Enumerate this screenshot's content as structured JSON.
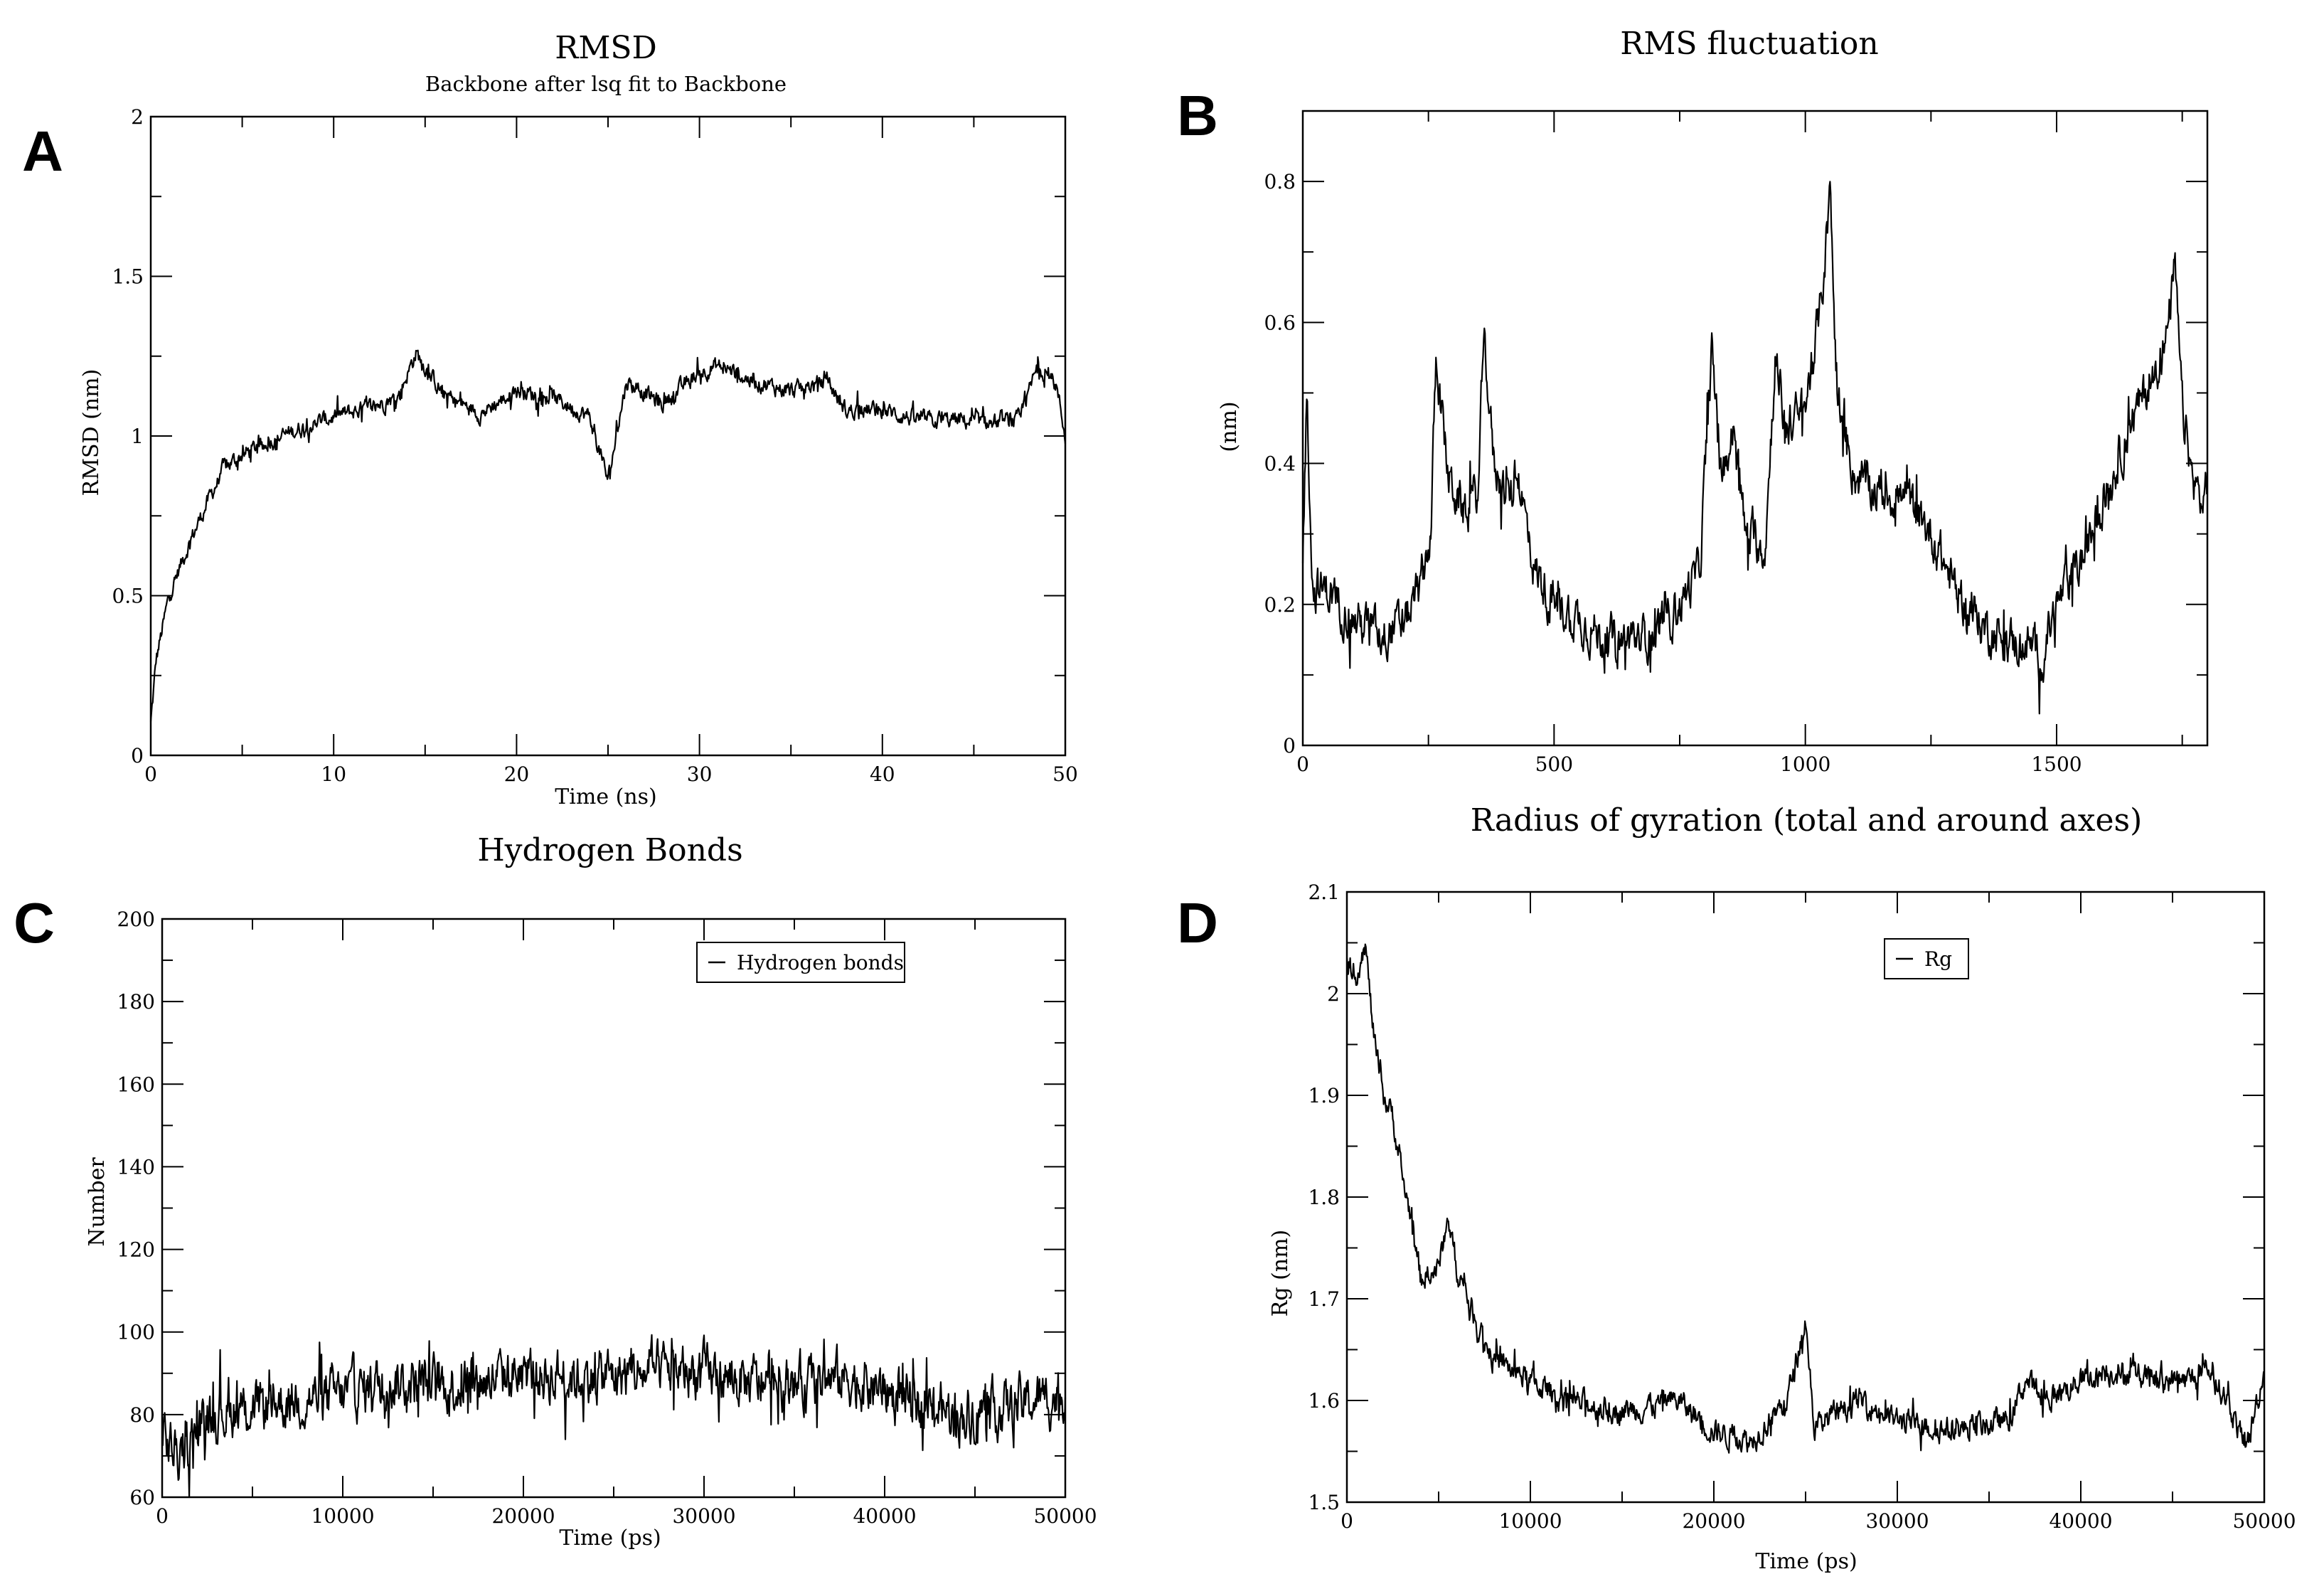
{
  "figure": {
    "background": "#ffffff",
    "line_color": "#000000",
    "panels": [
      "A",
      "B",
      "C",
      "D"
    ]
  },
  "chart_data": [
    {
      "panel_label": "A",
      "type": "line",
      "title": "RMSD",
      "subtitle": "Backbone after lsq fit to Backbone",
      "xlabel": "Time (ns)",
      "ylabel": "RMSD (nm)",
      "xlim": [
        0,
        50
      ],
      "ylim": [
        0,
        2
      ],
      "xticks": [
        0,
        10,
        20,
        30,
        40,
        50
      ],
      "yticks": [
        0,
        0.5,
        1,
        1.5,
        2
      ],
      "ytick_labels": [
        "0",
        "0.5",
        "1",
        "1.5",
        "2"
      ],
      "noise": 0.025,
      "legend": null,
      "series": [
        {
          "name": "RMSD",
          "x": [
            0,
            0.3,
            1,
            2,
            3,
            4,
            5,
            6,
            8,
            10,
            12,
            13.5,
            14.5,
            16,
            18,
            20,
            22,
            24,
            25,
            26,
            28,
            30,
            31,
            33,
            35,
            37,
            38,
            40,
            42,
            44,
            46,
            47.5,
            48.5,
            49.5,
            50
          ],
          "y": [
            0.1,
            0.3,
            0.5,
            0.65,
            0.78,
            0.9,
            0.94,
            0.97,
            1.02,
            1.06,
            1.09,
            1.12,
            1.26,
            1.13,
            1.07,
            1.14,
            1.12,
            1.06,
            0.86,
            1.17,
            1.1,
            1.2,
            1.22,
            1.17,
            1.14,
            1.17,
            1.08,
            1.08,
            1.05,
            1.05,
            1.04,
            1.05,
            1.22,
            1.16,
            1.0
          ]
        }
      ]
    },
    {
      "panel_label": "B",
      "type": "line",
      "title": "RMS fluctuation",
      "xlabel": "",
      "ylabel": "(nm)",
      "xlim": [
        0,
        1800
      ],
      "ylim": [
        0,
        0.9
      ],
      "xticks": [
        0,
        500,
        1000,
        1500
      ],
      "yticks": [
        0,
        0.2,
        0.4,
        0.6,
        0.8
      ],
      "ytick_labels": [
        "0",
        "0.2",
        "0.4",
        "0.6",
        "0.8"
      ],
      "noise": 0.03,
      "legend": null,
      "series": [
        {
          "name": "RMSF",
          "x": [
            0,
            8,
            20,
            50,
            100,
            150,
            200,
            230,
            255,
            265,
            290,
            320,
            350,
            360,
            380,
            410,
            430,
            460,
            500,
            550,
            600,
            650,
            700,
            750,
            790,
            815,
            830,
            860,
            880,
            920,
            940,
            960,
            1000,
            1030,
            1050,
            1060,
            1080,
            1100,
            1150,
            1200,
            1250,
            1300,
            1350,
            1400,
            1450,
            1470,
            1500,
            1550,
            1600,
            1650,
            1690,
            1720,
            1735,
            1750,
            1770,
            1790,
            1800
          ],
          "y": [
            0.25,
            0.5,
            0.22,
            0.22,
            0.18,
            0.16,
            0.17,
            0.22,
            0.3,
            0.55,
            0.38,
            0.33,
            0.36,
            0.6,
            0.4,
            0.35,
            0.38,
            0.25,
            0.2,
            0.18,
            0.15,
            0.15,
            0.16,
            0.2,
            0.25,
            0.58,
            0.38,
            0.45,
            0.3,
            0.28,
            0.55,
            0.45,
            0.48,
            0.62,
            0.78,
            0.55,
            0.42,
            0.38,
            0.36,
            0.35,
            0.3,
            0.22,
            0.17,
            0.15,
            0.14,
            0.12,
            0.2,
            0.26,
            0.36,
            0.46,
            0.52,
            0.58,
            0.68,
            0.48,
            0.38,
            0.34,
            0.38
          ]
        }
      ]
    },
    {
      "panel_label": "C",
      "type": "line",
      "title": "Hydrogen Bonds",
      "xlabel": "Time (ps)",
      "ylabel": "Number",
      "xlim": [
        0,
        50000
      ],
      "ylim": [
        60,
        200
      ],
      "xticks": [
        0,
        10000,
        20000,
        30000,
        40000,
        50000
      ],
      "yticks": [
        60,
        80,
        100,
        120,
        140,
        160,
        180,
        200
      ],
      "ytick_labels": [
        "60",
        "80",
        "100",
        "120",
        "140",
        "160",
        "180",
        "200"
      ],
      "noise": 6,
      "legend": "Hydrogen bonds",
      "series": [
        {
          "name": "Hydrogen bonds",
          "x": [
            0,
            1000,
            2500,
            5000,
            8000,
            10000,
            13000,
            16000,
            20000,
            23000,
            26000,
            29000,
            32000,
            35000,
            38000,
            41000,
            44000,
            47000,
            50000
          ],
          "y": [
            75,
            70,
            80,
            82,
            84,
            85,
            88,
            87,
            90,
            89,
            90,
            91,
            88,
            87,
            89,
            84,
            80,
            82,
            85
          ]
        }
      ]
    },
    {
      "panel_label": "D",
      "type": "line",
      "title": "Radius of gyration (total and around axes)",
      "xlabel": "Time (ps)",
      "ylabel": "Rg (nm)",
      "xlim": [
        0,
        50000
      ],
      "ylim": [
        1.5,
        2.1
      ],
      "xticks": [
        0,
        10000,
        20000,
        30000,
        40000,
        50000
      ],
      "yticks": [
        1.5,
        1.6,
        1.7,
        1.8,
        1.9,
        2,
        2.1
      ],
      "ytick_labels": [
        "1.5",
        "1.6",
        "1.7",
        "1.8",
        "1.9",
        "2",
        "2.1"
      ],
      "noise": 0.012,
      "legend": "Rg",
      "series": [
        {
          "name": "Rg",
          "x": [
            0,
            500,
            1000,
            1500,
            2000,
            2500,
            3000,
            3500,
            4000,
            5000,
            5500,
            6000,
            7000,
            8000,
            10000,
            12000,
            15000,
            18000,
            20000,
            22000,
            24000,
            25000,
            25500,
            26000,
            28000,
            30000,
            33000,
            36000,
            37000,
            38000,
            40000,
            42000,
            44000,
            46000,
            47000,
            48000,
            49000,
            50000
          ],
          "y": [
            2.03,
            2.02,
            2.05,
            1.95,
            1.9,
            1.88,
            1.82,
            1.78,
            1.72,
            1.73,
            1.78,
            1.73,
            1.68,
            1.64,
            1.62,
            1.6,
            1.59,
            1.6,
            1.57,
            1.56,
            1.6,
            1.68,
            1.57,
            1.58,
            1.6,
            1.58,
            1.57,
            1.58,
            1.62,
            1.6,
            1.62,
            1.63,
            1.62,
            1.62,
            1.63,
            1.6,
            1.55,
            1.63
          ]
        }
      ]
    }
  ]
}
